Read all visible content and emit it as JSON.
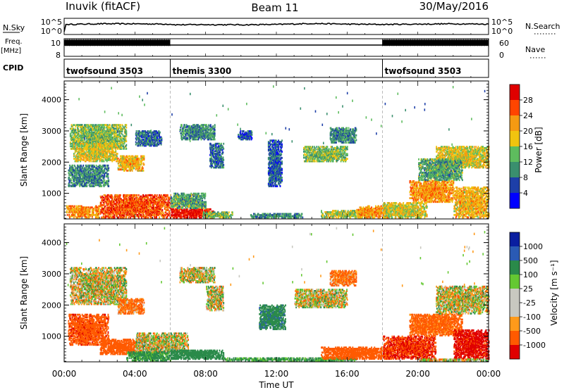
{
  "header": {
    "station": "Inuvik (fitACF)",
    "beam": "Beam 11",
    "date": "30/May/2016"
  },
  "colors": {
    "power_scale": [
      "#0000ff",
      "#1d3fa8",
      "#3a8f6e",
      "#5ebc5e",
      "#f1c40f",
      "#f59a12",
      "#ff4500",
      "#e00000"
    ],
    "velocity_scale": [
      "#e00000",
      "#ff5a00",
      "#ff9a1a",
      "#c8c8c0",
      "#c8c8c0",
      "#64c832",
      "#2a8a4a",
      "#2a5ab4",
      "#0a1ea0"
    ],
    "ground_scatter": "#c0c0b8"
  },
  "chart_data": [
    {
      "id": "nsky_panel",
      "type": "line",
      "ylabel": "N.Sky",
      "yticks_left": [
        "10^5",
        "10^0"
      ],
      "yticks_right": [
        "10^5",
        "10^0"
      ],
      "right_label": "N.Search",
      "x": [
        0,
        0.1,
        1,
        2,
        4,
        6,
        6.3,
        8,
        10,
        12,
        14,
        16,
        18,
        20,
        22,
        24
      ],
      "values": [
        0.9,
        3.1,
        3.2,
        3.3,
        3.3,
        3.2,
        3.0,
        3.05,
        3.0,
        3.1,
        3.4,
        3.2,
        3.1,
        3.2,
        3.3,
        3.2
      ],
      "ylim": [
        0,
        5
      ]
    },
    {
      "id": "freq_panel",
      "type": "area",
      "ylabel": "Freq.",
      "yunit": "[MHz]",
      "yticks_left": [
        "10",
        "8"
      ],
      "yticks_right": [
        "60",
        "0"
      ],
      "right_label": "Nave",
      "segments": [
        {
          "x": [
            0,
            6
          ],
          "value": 10.2
        },
        {
          "x": [
            6,
            18
          ],
          "value": 9.6
        },
        {
          "x": [
            18,
            24
          ],
          "value": 10.2
        }
      ],
      "ylim": [
        8,
        10.5
      ]
    },
    {
      "id": "cpid_panel",
      "type": "table",
      "label": "CPID",
      "segments": [
        {
          "start": 0,
          "end": 6,
          "name": "twofsound 3503"
        },
        {
          "start": 6,
          "end": 18,
          "name": "themis 3300"
        },
        {
          "start": 18,
          "end": 24,
          "name": "twofsound 3503"
        }
      ]
    },
    {
      "id": "power_panel",
      "type": "heatmap",
      "ylabel": "Slant Range [km]",
      "yticks": [
        "4000",
        "3000",
        "2000",
        "1000"
      ],
      "ylim": [
        180,
        4600
      ],
      "colorbar_label": "Power [dB]",
      "colorbar_ticks": [
        "28",
        "24",
        "20",
        "16",
        "12",
        "8",
        "4"
      ],
      "clim": [
        0,
        32
      ],
      "regions": [
        {
          "t0": 0.3,
          "t1": 3.5,
          "r0": 2400,
          "r1": 3200,
          "level": 14
        },
        {
          "t0": 0.5,
          "t1": 3.0,
          "r0": 2000,
          "r1": 2600,
          "level": 18
        },
        {
          "t0": 0.2,
          "t1": 2.5,
          "r0": 1200,
          "r1": 1900,
          "level": 10
        },
        {
          "t0": 3.0,
          "t1": 4.5,
          "r0": 1700,
          "r1": 2200,
          "level": 20
        },
        {
          "t0": 4.0,
          "t1": 5.5,
          "r0": 2500,
          "r1": 3000,
          "level": 8
        },
        {
          "t0": 0.1,
          "t1": 2.0,
          "r0": 200,
          "r1": 600,
          "level": 22
        },
        {
          "t0": 2.0,
          "t1": 6.0,
          "r0": 200,
          "r1": 950,
          "level": 26
        },
        {
          "t0": 6.0,
          "t1": 8.5,
          "r0": 200,
          "r1": 500,
          "level": 30
        },
        {
          "t0": 6.0,
          "t1": 8.0,
          "r0": 500,
          "r1": 1000,
          "level": 12
        },
        {
          "t0": 7.8,
          "t1": 9.5,
          "r0": 200,
          "r1": 400,
          "level": 14
        },
        {
          "t0": 6.5,
          "t1": 8.5,
          "r0": 2700,
          "r1": 3200,
          "level": 10
        },
        {
          "t0": 8.2,
          "t1": 9.0,
          "r0": 1800,
          "r1": 2600,
          "level": 8
        },
        {
          "t0": 9.8,
          "t1": 10.6,
          "r0": 2700,
          "r1": 3000,
          "level": 6
        },
        {
          "t0": 11.5,
          "t1": 12.3,
          "r0": 1200,
          "r1": 2700,
          "level": 7
        },
        {
          "t0": 13.5,
          "t1": 16.0,
          "r0": 2000,
          "r1": 2500,
          "level": 14
        },
        {
          "t0": 15.0,
          "t1": 16.5,
          "r0": 2600,
          "r1": 3100,
          "level": 10
        },
        {
          "t0": 14.5,
          "t1": 17.5,
          "r0": 200,
          "r1": 450,
          "level": 16
        },
        {
          "t0": 16.5,
          "t1": 18.5,
          "r0": 200,
          "r1": 600,
          "level": 22
        },
        {
          "t0": 18.0,
          "t1": 20.5,
          "r0": 200,
          "r1": 700,
          "level": 18
        },
        {
          "t0": 19.5,
          "t1": 22.0,
          "r0": 700,
          "r1": 1400,
          "level": 22
        },
        {
          "t0": 21.0,
          "t1": 24.0,
          "r0": 1800,
          "r1": 2500,
          "level": 18
        },
        {
          "t0": 22.0,
          "t1": 24.0,
          "r0": 200,
          "r1": 1200,
          "level": 20
        },
        {
          "t0": 20.0,
          "t1": 22.5,
          "r0": 1400,
          "r1": 2100,
          "level": 12
        },
        {
          "t0": 10.5,
          "t1": 13.5,
          "r0": 200,
          "r1": 350,
          "level": 10
        }
      ]
    },
    {
      "id": "velocity_panel",
      "type": "heatmap",
      "ylabel": "Slant Range [km]",
      "yticks": [
        "4000",
        "3000",
        "2000",
        "1000"
      ],
      "ylim": [
        180,
        4600
      ],
      "colorbar_label": "Velocity [m s⁻¹]",
      "colorbar_ticks": [
        "1000",
        "500",
        "100",
        "25",
        "-25",
        "-100",
        "-500",
        "-1000"
      ],
      "clim": [
        -1200,
        1200
      ],
      "regions": [
        {
          "t0": 0.3,
          "t1": 3.5,
          "r0": 2000,
          "r1": 3200,
          "vel": 0
        },
        {
          "t0": 3.0,
          "t1": 4.5,
          "r0": 1700,
          "r1": 2200,
          "vel": -150
        },
        {
          "t0": 0.2,
          "t1": 2.5,
          "r0": 700,
          "r1": 1700,
          "vel": -400
        },
        {
          "t0": 2.0,
          "t1": 4.5,
          "r0": 400,
          "r1": 900,
          "vel": -300
        },
        {
          "t0": 4.0,
          "t1": 7.0,
          "r0": 450,
          "r1": 1100,
          "vel": 0
        },
        {
          "t0": 3.5,
          "t1": 6.0,
          "r0": 200,
          "r1": 500,
          "vel": 200
        },
        {
          "t0": 6.0,
          "t1": 9.0,
          "r0": 250,
          "r1": 550,
          "vel": 300
        },
        {
          "t0": 6.5,
          "t1": 8.5,
          "r0": 2700,
          "r1": 3200,
          "vel": 0
        },
        {
          "t0": 8.0,
          "t1": 9.0,
          "r0": 1800,
          "r1": 2600,
          "vel": 0
        },
        {
          "t0": 11.0,
          "t1": 12.5,
          "r0": 1200,
          "r1": 2000,
          "vel": 400
        },
        {
          "t0": 13.0,
          "t1": 16.0,
          "r0": 1900,
          "r1": 2500,
          "vel": 0
        },
        {
          "t0": 15.0,
          "t1": 16.5,
          "r0": 2600,
          "r1": 3100,
          "vel": -150
        },
        {
          "t0": 9.0,
          "t1": 16.5,
          "r0": 200,
          "r1": 300,
          "vel": 150
        },
        {
          "t0": 14.5,
          "t1": 18.5,
          "r0": 250,
          "r1": 650,
          "vel": -350
        },
        {
          "t0": 18.0,
          "t1": 21.0,
          "r0": 250,
          "r1": 1000,
          "vel": -500
        },
        {
          "t0": 19.5,
          "t1": 22.5,
          "r0": 1000,
          "r1": 1700,
          "vel": -200
        },
        {
          "t0": 21.0,
          "t1": 24.0,
          "r0": 1700,
          "r1": 2600,
          "vel": 0
        },
        {
          "t0": 22.0,
          "t1": 24.0,
          "r0": 250,
          "r1": 1200,
          "vel": -600
        },
        {
          "t0": 20.0,
          "t1": 24.0,
          "r0": 200,
          "r1": 260,
          "vel": 0
        }
      ]
    }
  ],
  "time_axis": {
    "label": "Time UT",
    "ticks": [
      "00:00",
      "04:00",
      "08:00",
      "12:00",
      "16:00",
      "20:00",
      "00:00"
    ],
    "tick_hours": [
      0,
      4,
      8,
      12,
      16,
      20,
      24
    ],
    "range": [
      0,
      24
    ]
  },
  "separators_hours": [
    6,
    18
  ]
}
